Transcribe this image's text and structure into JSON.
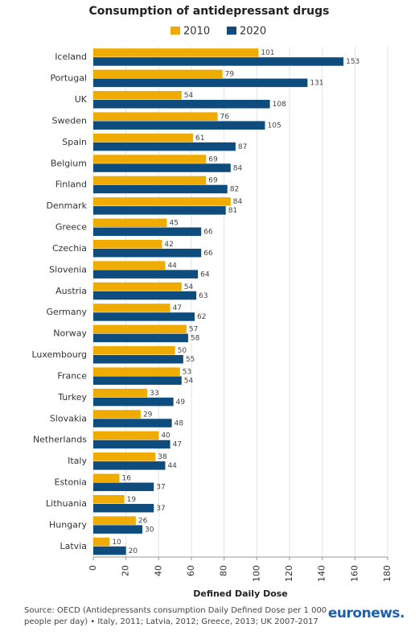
{
  "chart_data": {
    "type": "hbar",
    "title": "Consumption of antidepressant drugs",
    "categories": [
      "Iceland",
      "Portugal",
      "UK",
      "Sweden",
      "Spain",
      "Belgium",
      "Finland",
      "Denmark",
      "Greece",
      "Czechia",
      "Slovenia",
      "Austria",
      "Germany",
      "Norway",
      "Luxembourg",
      "France",
      "Turkey",
      "Slovakia",
      "Netherlands",
      "Italy",
      "Estonia",
      "Lithuania",
      "Hungary",
      "Latvia"
    ],
    "series": [
      {
        "name": "2010",
        "color": "#f0ab00",
        "values": [
          101,
          79,
          54,
          76,
          61,
          69,
          69,
          84,
          45,
          42,
          44,
          54,
          47,
          57,
          50,
          53,
          33,
          29,
          40,
          38,
          16,
          19,
          26,
          10
        ]
      },
      {
        "name": "2020",
        "color": "#0d4c7c",
        "values": [
          153,
          131,
          108,
          105,
          87,
          84,
          82,
          81,
          66,
          66,
          64,
          63,
          62,
          58,
          55,
          54,
          49,
          48,
          47,
          44,
          37,
          37,
          30,
          20
        ]
      }
    ],
    "xlim": [
      0,
      180
    ],
    "xticks": [
      0,
      20,
      40,
      60,
      80,
      100,
      120,
      140,
      160,
      180
    ],
    "grid": true,
    "xlabel": "Defined Daily Dose",
    "legend": "top",
    "source": "Source: OECD (Antidepressants consumption Daily Defined Dose per 1 000 people per day) • Italy, 2011; Latvia, 2012; Greece, 2013; UK 2007-2017",
    "logo": "euronews."
  }
}
